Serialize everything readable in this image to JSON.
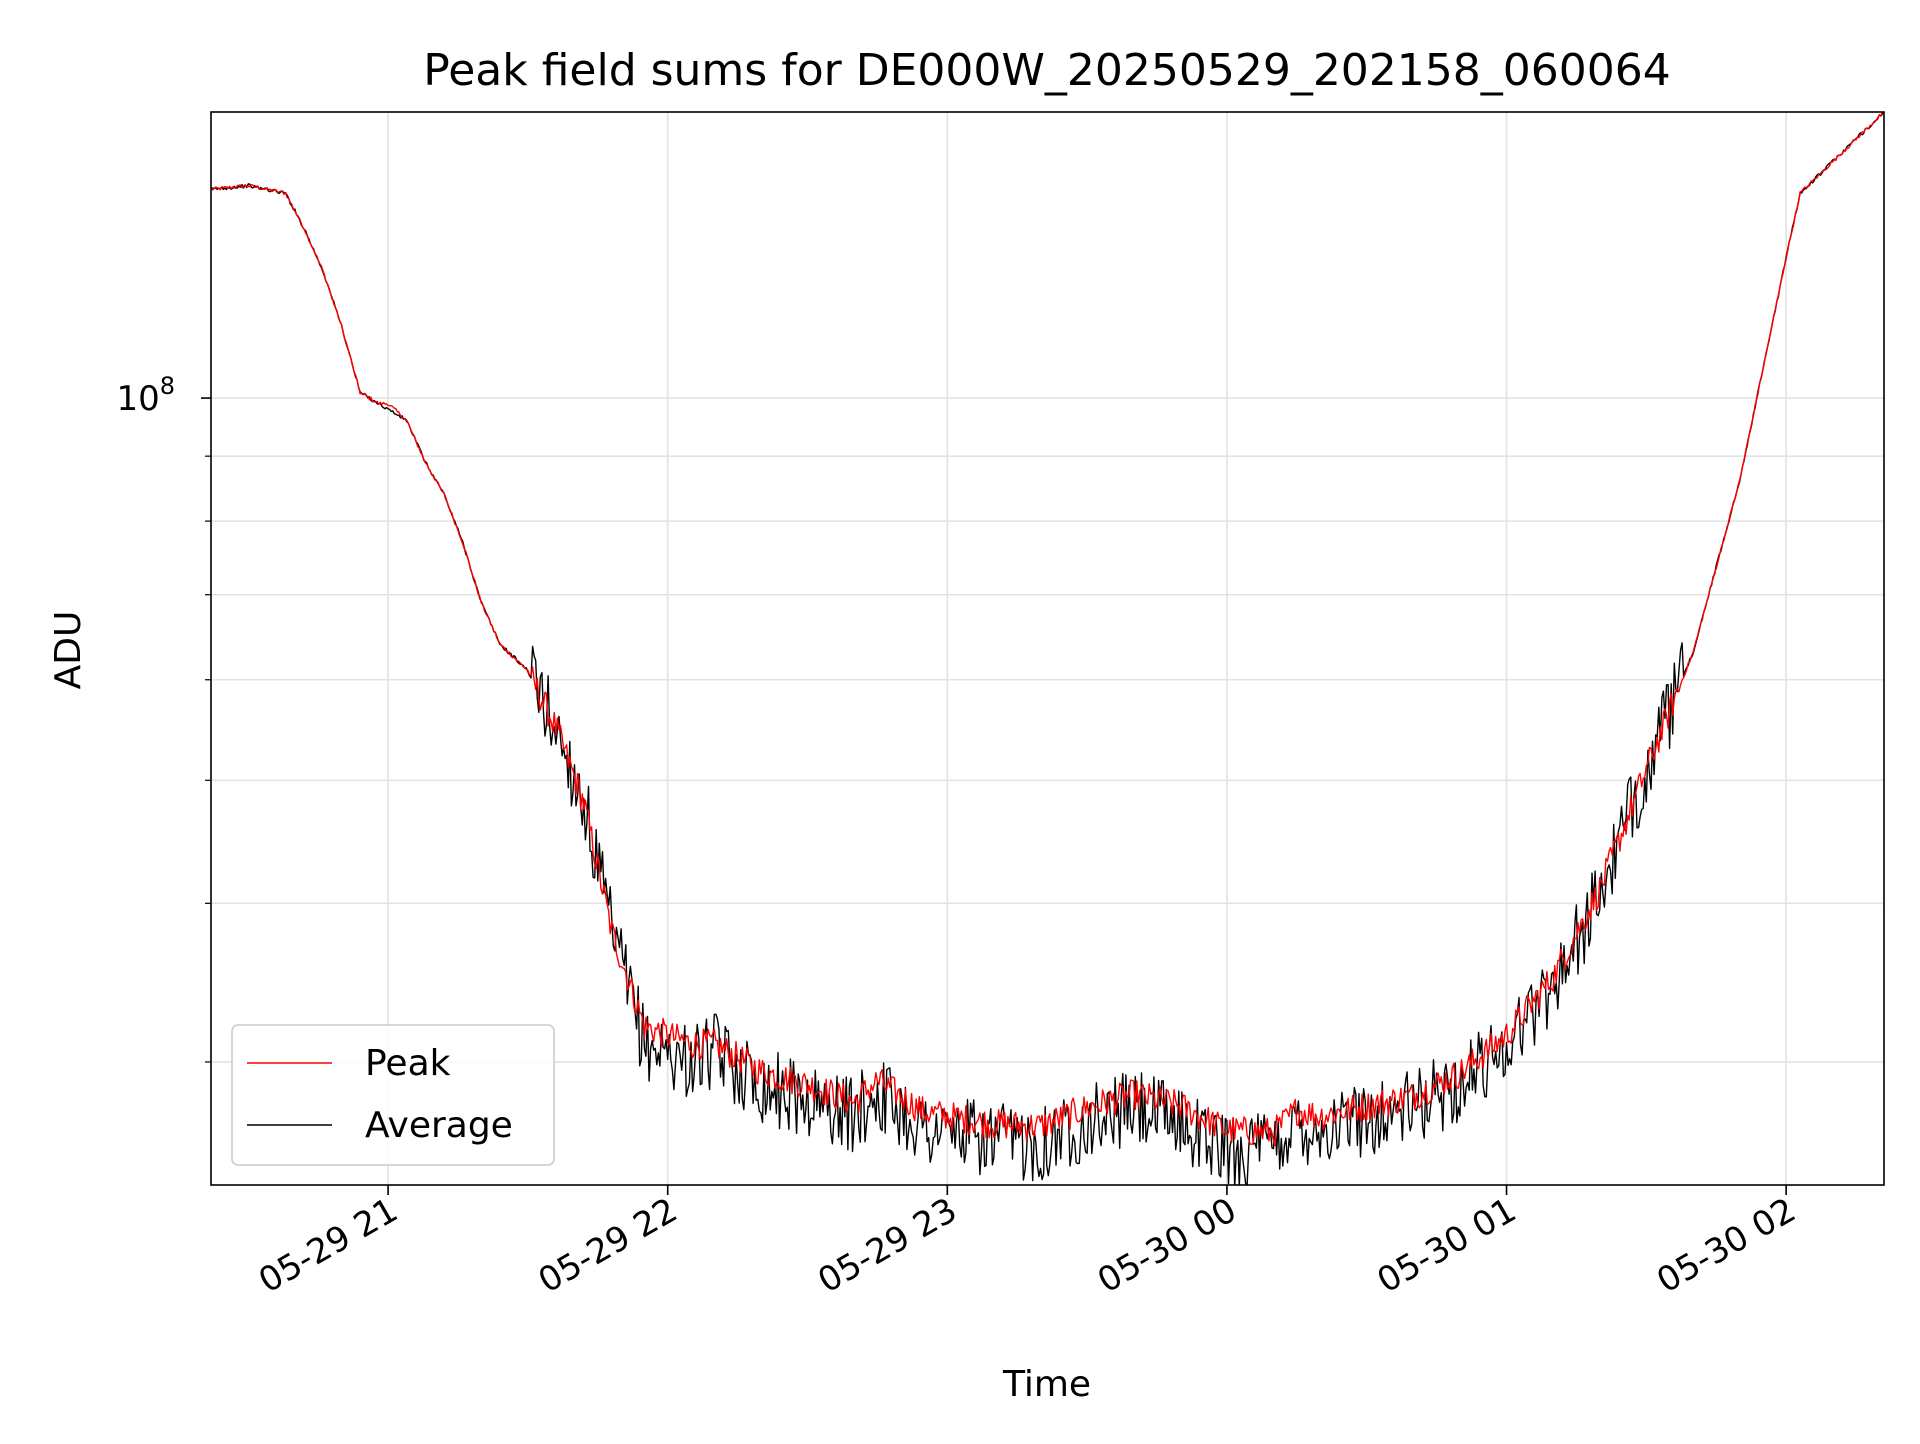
{
  "chart_data": {
    "type": "line",
    "title": "Peak field sums for DE000W_20250529_202158_060064",
    "xlabel": "Time",
    "ylabel": "ADU",
    "y_scale": "log",
    "ylim": [
      24000000,
      168000000
    ],
    "xlim": [
      "2025-05-29 20:22",
      "2025-05-30 02:21"
    ],
    "x_ticks": [
      {
        "value": "2025-05-29 21:00",
        "label": "05-29 21"
      },
      {
        "value": "2025-05-29 22:00",
        "label": "05-29 22"
      },
      {
        "value": "2025-05-29 23:00",
        "label": "05-29 23"
      },
      {
        "value": "2025-05-30 00:00",
        "label": "05-30 00"
      },
      {
        "value": "2025-05-30 01:00",
        "label": "05-30 01"
      },
      {
        "value": "2025-05-30 02:00",
        "label": "05-30 02"
      }
    ],
    "y_ticks": [
      {
        "value": 100000000,
        "base": "10",
        "exp": "8"
      }
    ],
    "grid": true,
    "legend_position": "bottom-left",
    "x": [
      "2025-05-29 20:22",
      "2025-05-29 20:30",
      "2025-05-29 20:38",
      "2025-05-29 20:42",
      "2025-05-29 20:46",
      "2025-05-29 20:50",
      "2025-05-29 20:54",
      "2025-05-29 20:58",
      "2025-05-29 21:00",
      "2025-05-29 21:04",
      "2025-05-29 21:08",
      "2025-05-29 21:12",
      "2025-05-29 21:16",
      "2025-05-29 21:20",
      "2025-05-29 21:24",
      "2025-05-29 21:30",
      "2025-05-29 21:36",
      "2025-05-29 21:42",
      "2025-05-29 21:48",
      "2025-05-29 21:55",
      "2025-05-29 22:05",
      "2025-05-29 22:10",
      "2025-05-29 22:20",
      "2025-05-29 22:30",
      "2025-05-29 22:40",
      "2025-05-29 22:45",
      "2025-05-29 22:55",
      "2025-05-29 23:10",
      "2025-05-29 23:20",
      "2025-05-29 23:30",
      "2025-05-29 23:40",
      "2025-05-29 23:50",
      "2025-05-30 00:00",
      "2025-05-30 00:10",
      "2025-05-30 00:15",
      "2025-05-30 00:20",
      "2025-05-30 00:30",
      "2025-05-30 00:40",
      "2025-05-30 00:50",
      "2025-05-30 01:00",
      "2025-05-30 01:10",
      "2025-05-30 01:20",
      "2025-05-30 01:30",
      "2025-05-30 01:40",
      "2025-05-30 01:50",
      "2025-05-30 02:00",
      "2025-05-30 02:03",
      "2025-05-30 02:21"
    ],
    "series": [
      {
        "name": "Peak",
        "color": "#ff0000",
        "values": [
          146000000,
          147000000,
          145000000,
          136000000,
          126000000,
          114000000,
          101000000,
          99000000,
          99000000,
          96000000,
          89000000,
          84000000,
          77000000,
          69000000,
          64000000,
          61000000,
          55000000,
          48000000,
          38000000,
          32000000,
          31000000,
          31000000,
          29500000,
          28800000,
          27900000,
          29000000,
          27400000,
          26800000,
          26700000,
          27600000,
          28300000,
          27700000,
          26500000,
          26400000,
          27500000,
          27200000,
          27700000,
          28200000,
          29400000,
          31500000,
          35000000,
          41000000,
          51000000,
          63000000,
          86000000,
          129000000,
          145000000,
          168000000
        ]
      },
      {
        "name": "Average",
        "color": "#000000",
        "values": [
          146000000,
          147000000,
          145000000,
          136000000,
          126000000,
          114000000,
          101000000,
          99000000,
          98000000,
          96000000,
          89000000,
          84000000,
          77000000,
          69000000,
          64000000,
          61000000,
          55000000,
          48000000,
          38000000,
          31000000,
          30000000,
          30600000,
          28800000,
          28000000,
          27200000,
          28400000,
          26600000,
          26000000,
          25900000,
          26900000,
          27600000,
          26900000,
          25500000,
          25700000,
          26800000,
          26500000,
          27100000,
          27600000,
          28800000,
          31000000,
          34500000,
          40500000,
          51000000,
          63000000,
          86000000,
          129000000,
          145000000,
          168000000
        ]
      }
    ]
  }
}
